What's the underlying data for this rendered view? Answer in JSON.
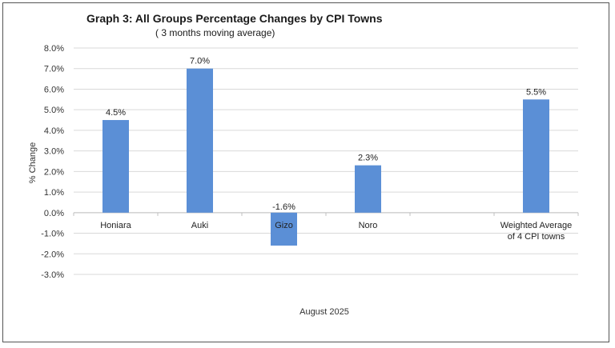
{
  "chart_data": {
    "type": "bar",
    "title": "Graph 3: All Groups Percentage Changes by CPI Towns",
    "subtitle": "( 3 months moving average)",
    "xlabel": "August  2025",
    "ylabel": "% Change",
    "ylim": [
      -3,
      8
    ],
    "ytick_step": 1,
    "ytick_labels": [
      "-3.0%",
      "-2.0%",
      "-1.0%",
      "0.0%",
      "1.0%",
      "2.0%",
      "3.0%",
      "4.0%",
      "5.0%",
      "6.0%",
      "7.0%",
      "8.0%"
    ],
    "categories": [
      "Honiara",
      "Auki",
      "Gizo",
      "Noro",
      "",
      "Weighted Average of 4 CPI towns"
    ],
    "category_lines": [
      [
        "Honiara"
      ],
      [
        "Auki"
      ],
      [
        "Gizo"
      ],
      [
        "Noro"
      ],
      [],
      [
        "Weighted Average",
        "of 4 CPI towns"
      ]
    ],
    "values": [
      4.5,
      7.0,
      -1.6,
      2.3,
      null,
      5.5
    ],
    "data_labels": [
      "4.5%",
      "7.0%",
      "-1.6%",
      "2.3%",
      "",
      "5.5%"
    ],
    "bar_color": "#5b8fd6",
    "grid": true,
    "legend": "none"
  }
}
